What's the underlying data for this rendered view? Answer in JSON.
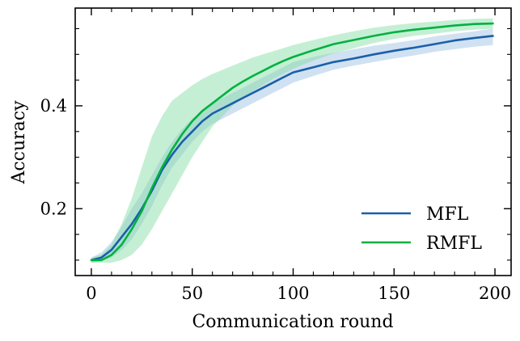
{
  "chart_data": {
    "type": "line",
    "title": "",
    "xlabel": "Communication round",
    "ylabel": "Accuracy",
    "xlim": [
      -8,
      208
    ],
    "ylim": [
      0.07,
      0.59
    ],
    "xticks": [
      0,
      50,
      100,
      150,
      200
    ],
    "xtick_labels": [
      "0",
      "50",
      "100",
      "150",
      "200"
    ],
    "yticks": [
      0.2,
      0.4
    ],
    "ytick_labels": [
      "0.2",
      "0.4"
    ],
    "legend_position": "lower-right",
    "grid": false,
    "series": [
      {
        "name": "MFL",
        "color": "#1a5fa8",
        "band_color": "#a9c8e8",
        "x": [
          0,
          5,
          10,
          15,
          20,
          25,
          30,
          35,
          40,
          45,
          50,
          55,
          60,
          65,
          70,
          75,
          80,
          85,
          90,
          95,
          100,
          110,
          120,
          130,
          140,
          150,
          160,
          170,
          180,
          190,
          199
        ],
        "mean": [
          0.1,
          0.105,
          0.12,
          0.145,
          0.17,
          0.2,
          0.235,
          0.275,
          0.305,
          0.33,
          0.35,
          0.37,
          0.385,
          0.395,
          0.405,
          0.415,
          0.425,
          0.435,
          0.445,
          0.455,
          0.465,
          0.475,
          0.485,
          0.492,
          0.5,
          0.507,
          0.513,
          0.52,
          0.527,
          0.532,
          0.536
        ],
        "lower": [
          0.095,
          0.098,
          0.105,
          0.12,
          0.14,
          0.17,
          0.205,
          0.245,
          0.28,
          0.305,
          0.33,
          0.35,
          0.365,
          0.375,
          0.385,
          0.395,
          0.405,
          0.415,
          0.425,
          0.435,
          0.445,
          0.458,
          0.47,
          0.478,
          0.485,
          0.492,
          0.498,
          0.505,
          0.51,
          0.515,
          0.518
        ],
        "upper": [
          0.105,
          0.115,
          0.135,
          0.165,
          0.2,
          0.23,
          0.265,
          0.3,
          0.33,
          0.355,
          0.375,
          0.39,
          0.405,
          0.415,
          0.425,
          0.435,
          0.445,
          0.455,
          0.465,
          0.475,
          0.485,
          0.495,
          0.503,
          0.51,
          0.517,
          0.522,
          0.528,
          0.535,
          0.54,
          0.545,
          0.55
        ]
      },
      {
        "name": "RMFL",
        "color": "#00b140",
        "band_color": "#7fdca0",
        "x": [
          0,
          5,
          10,
          15,
          20,
          25,
          30,
          35,
          40,
          45,
          50,
          55,
          60,
          65,
          70,
          75,
          80,
          85,
          90,
          95,
          100,
          110,
          120,
          130,
          140,
          150,
          160,
          170,
          180,
          190,
          199
        ],
        "mean": [
          0.1,
          0.1,
          0.11,
          0.13,
          0.16,
          0.195,
          0.24,
          0.28,
          0.315,
          0.345,
          0.37,
          0.39,
          0.405,
          0.42,
          0.435,
          0.447,
          0.458,
          0.468,
          0.478,
          0.487,
          0.495,
          0.508,
          0.52,
          0.528,
          0.536,
          0.543,
          0.548,
          0.552,
          0.556,
          0.559,
          0.56
        ],
        "lower": [
          0.095,
          0.095,
          0.095,
          0.1,
          0.11,
          0.13,
          0.16,
          0.195,
          0.23,
          0.265,
          0.3,
          0.33,
          0.36,
          0.38,
          0.4,
          0.415,
          0.428,
          0.44,
          0.452,
          0.462,
          0.472,
          0.488,
          0.502,
          0.512,
          0.522,
          0.53,
          0.536,
          0.54,
          0.545,
          0.548,
          0.55
        ],
        "upper": [
          0.105,
          0.11,
          0.13,
          0.17,
          0.22,
          0.28,
          0.34,
          0.38,
          0.41,
          0.425,
          0.44,
          0.452,
          0.462,
          0.47,
          0.478,
          0.486,
          0.494,
          0.5,
          0.506,
          0.512,
          0.518,
          0.528,
          0.537,
          0.545,
          0.552,
          0.557,
          0.561,
          0.564,
          0.567,
          0.569,
          0.57
        ]
      }
    ]
  }
}
